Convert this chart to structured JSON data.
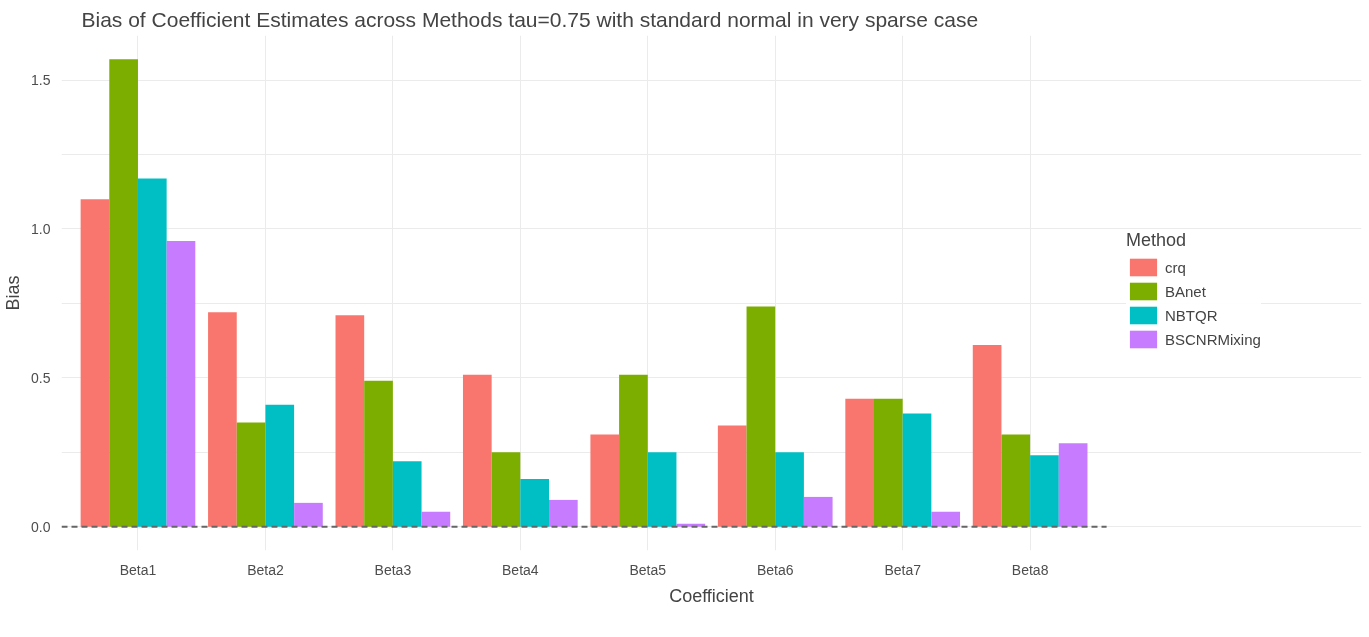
{
  "chart_data": {
    "type": "bar",
    "title": "Bias of Coefficient Estimates across Methods tau=0.75 with standard normal in very sparse case",
    "xlabel": "Coefficient",
    "ylabel": "Bias",
    "legend_title": "Method",
    "categories": [
      "Beta1",
      "Beta2",
      "Beta3",
      "Beta4",
      "Beta5",
      "Beta6",
      "Beta7",
      "Beta8"
    ],
    "series": [
      {
        "name": "crq",
        "color": "#f8766d",
        "values": [
          1.1,
          0.72,
          0.71,
          0.51,
          0.31,
          0.34,
          0.43,
          0.61
        ]
      },
      {
        "name": "BAnet",
        "color": "#7cae00",
        "values": [
          1.57,
          0.35,
          0.49,
          0.25,
          0.51,
          0.74,
          0.43,
          0.31
        ]
      },
      {
        "name": "NBTQR",
        "color": "#00bfc4",
        "values": [
          1.17,
          0.41,
          0.22,
          0.16,
          0.25,
          0.25,
          0.38,
          0.24
        ]
      },
      {
        "name": "BSCNRMixing",
        "color": "#c77cff",
        "values": [
          0.96,
          0.08,
          0.05,
          0.09,
          0.01,
          0.1,
          0.05,
          0.28
        ]
      }
    ],
    "ylim": [
      -0.08,
      1.65
    ],
    "yticks": [
      {
        "value": 0,
        "label": "0.0"
      },
      {
        "value": 0.25,
        "label": null
      },
      {
        "value": 0.5,
        "label": "0.5"
      },
      {
        "value": 0.75,
        "label": null
      },
      {
        "value": 1,
        "label": "1.0"
      },
      {
        "value": 1.25,
        "label": null
      },
      {
        "value": 1.5,
        "label": "1.5"
      }
    ],
    "ref_lines": [
      {
        "axis": "y",
        "value": 0,
        "label": null,
        "color": "#666666",
        "line_style": "dashed"
      }
    ],
    "grid": true,
    "legend": "right"
  }
}
